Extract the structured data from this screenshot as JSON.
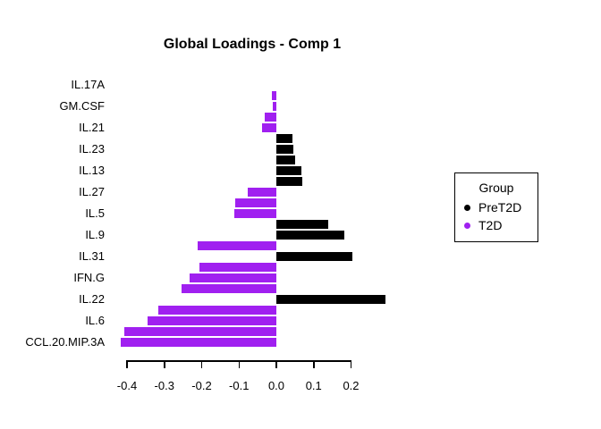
{
  "chart_data": {
    "type": "bar",
    "orientation": "horizontal",
    "title": "Global Loadings - Comp 1",
    "xlabel": "",
    "ylabel": "",
    "grid": false,
    "xlim": [
      -0.45,
      0.28
    ],
    "x_ticks": [
      -0.4,
      -0.3,
      -0.2,
      -0.1,
      0.0,
      0.1,
      0.2
    ],
    "x_tick_labels": [
      "-0.4",
      "-0.3",
      "-0.2",
      "-0.1",
      "0.0",
      "0.1",
      "0.2"
    ],
    "legend": {
      "title": "Group",
      "position": "right"
    },
    "groups": [
      {
        "name": "PreT2D",
        "color": "#000000"
      },
      {
        "name": "T2D",
        "color": "#A020F0"
      }
    ],
    "categories": [
      "IL.17A",
      "GM.CSF",
      "IL.21",
      "IL.23",
      "IL.13",
      "IL.27",
      "IL.5",
      "IL.9",
      "IL.31",
      "IFN.G",
      "IL.22",
      "IL.6",
      "CCL.20.MIP.3A"
    ],
    "bars": [
      {
        "row": 0,
        "category": "IL.17A",
        "group": null,
        "value": 0
      },
      {
        "row": 1,
        "category": "IL.17A",
        "group": "T2D",
        "value": -0.012
      },
      {
        "row": 2,
        "category": "GM.CSF",
        "group": "T2D",
        "value": -0.01
      },
      {
        "row": 3,
        "category": "GM.CSF",
        "group": "T2D",
        "value": -0.03
      },
      {
        "row": 4,
        "category": "IL.21",
        "group": "T2D",
        "value": -0.039
      },
      {
        "row": 5,
        "category": "IL.21",
        "group": "PreT2D",
        "value": 0.042
      },
      {
        "row": 6,
        "category": "IL.23",
        "group": "PreT2D",
        "value": 0.046
      },
      {
        "row": 7,
        "category": "IL.23",
        "group": "PreT2D",
        "value": 0.051
      },
      {
        "row": 8,
        "category": "IL.13",
        "group": "PreT2D",
        "value": 0.068
      },
      {
        "row": 9,
        "category": "IL.13",
        "group": "PreT2D",
        "value": 0.07
      },
      {
        "row": 10,
        "category": "IL.27",
        "group": "T2D",
        "value": -0.077
      },
      {
        "row": 11,
        "category": "IL.27",
        "group": "T2D",
        "value": -0.111
      },
      {
        "row": 12,
        "category": "IL.5",
        "group": "T2D",
        "value": -0.113
      },
      {
        "row": 13,
        "category": "IL.5",
        "group": "PreT2D",
        "value": 0.139
      },
      {
        "row": 14,
        "category": "IL.9",
        "group": "PreT2D",
        "value": 0.183
      },
      {
        "row": 15,
        "category": "IL.9",
        "group": "T2D",
        "value": -0.21
      },
      {
        "row": 16,
        "category": "IL.31",
        "group": "PreT2D",
        "value": 0.204
      },
      {
        "row": 17,
        "category": "IL.31",
        "group": "T2D",
        "value": -0.205
      },
      {
        "row": 18,
        "category": "IFN.G",
        "group": "T2D",
        "value": -0.233
      },
      {
        "row": 19,
        "category": "IFN.G",
        "group": "T2D",
        "value": -0.254
      },
      {
        "row": 20,
        "category": "IL.22",
        "group": "PreT2D",
        "value": 0.292
      },
      {
        "row": 21,
        "category": "IL.22",
        "group": "T2D",
        "value": -0.315
      },
      {
        "row": 22,
        "category": "IL.6",
        "group": "T2D",
        "value": -0.345
      },
      {
        "row": 23,
        "category": "IL.6",
        "group": "T2D",
        "value": -0.407
      },
      {
        "row": 24,
        "category": "CCL.20.MIP.3A",
        "group": "T2D",
        "value": -0.417
      },
      {
        "row": 25,
        "category": "CCL.20.MIP.3A",
        "group": null,
        "value": 0
      }
    ]
  }
}
